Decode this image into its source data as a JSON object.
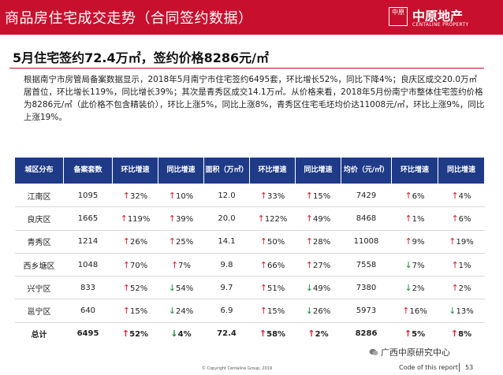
{
  "header": {
    "title": "商品房住宅成交走势（合同签约数据）",
    "logo": {
      "seal": "中原",
      "name": "中原地产",
      "en": "CENTALINE PROPERTY"
    }
  },
  "headline": "5月住宅签约72.4万㎡，签约价格8286元/㎡",
  "paragraph": "根据南宁市房管局备案数据显示，2018年5月南宁市住宅签约6495套，环比增长52%，同比下降4%；良庆区成交20.0万㎡居首位，环比增长119%，同比增长39%；其次是青秀区成交14.1万㎡。从价格来看，2018年5月份南宁市整体住宅签约价格为8286元/㎡（此价格不包含精装价），环比上涨5%，同比上涨8%，青秀区住宅毛坯均价达11008元/㎡，环比上涨9%，同比上涨19%。",
  "table": {
    "headers": [
      "城区分布",
      "备案套数",
      "环比增速",
      "同比增速",
      "面积（万㎡）",
      "环比增速",
      "同比增速",
      "均价（元/㎡）",
      "环比增速",
      "同比增速"
    ],
    "rows": [
      {
        "district": "江南区",
        "units": "1095",
        "u_mom": "32%",
        "u_mom_dir": "up",
        "u_yoy": "10%",
        "u_yoy_dir": "up",
        "area": "12.0",
        "a_mom": "33%",
        "a_mom_dir": "up",
        "a_yoy": "15%",
        "a_yoy_dir": "up",
        "price": "7429",
        "p_mom": "6%",
        "p_mom_dir": "up",
        "p_yoy": "4%",
        "p_yoy_dir": "up"
      },
      {
        "district": "良庆区",
        "units": "1665",
        "u_mom": "119%",
        "u_mom_dir": "up",
        "u_yoy": "39%",
        "u_yoy_dir": "up",
        "area": "20.0",
        "a_mom": "122%",
        "a_mom_dir": "up",
        "a_yoy": "49%",
        "a_yoy_dir": "up",
        "price": "8468",
        "p_mom": "1%",
        "p_mom_dir": "up",
        "p_yoy": "6%",
        "p_yoy_dir": "up"
      },
      {
        "district": "青秀区",
        "units": "1214",
        "u_mom": "26%",
        "u_mom_dir": "up",
        "u_yoy": "25%",
        "u_yoy_dir": "up",
        "area": "14.1",
        "a_mom": "50%",
        "a_mom_dir": "up",
        "a_yoy": "28%",
        "a_yoy_dir": "up",
        "price": "11008",
        "p_mom": "9%",
        "p_mom_dir": "up",
        "p_yoy": "19%",
        "p_yoy_dir": "up"
      },
      {
        "district": "西乡塘区",
        "units": "1048",
        "u_mom": "70%",
        "u_mom_dir": "up",
        "u_yoy": "7%",
        "u_yoy_dir": "up",
        "area": "9.8",
        "a_mom": "66%",
        "a_mom_dir": "up",
        "a_yoy": "27%",
        "a_yoy_dir": "up",
        "price": "7558",
        "p_mom": "7%",
        "p_mom_dir": "down",
        "p_yoy": "1%",
        "p_yoy_dir": "up"
      },
      {
        "district": "兴宁区",
        "units": "833",
        "u_mom": "52%",
        "u_mom_dir": "up",
        "u_yoy": "54%",
        "u_yoy_dir": "down",
        "area": "9.7",
        "a_mom": "51%",
        "a_mom_dir": "up",
        "a_yoy": "49%",
        "a_yoy_dir": "down",
        "price": "7380",
        "p_mom": "2%",
        "p_mom_dir": "down",
        "p_yoy": "2%",
        "p_yoy_dir": "up"
      },
      {
        "district": "邕宁区",
        "units": "640",
        "u_mom": "15%",
        "u_mom_dir": "up",
        "u_yoy": "24%",
        "u_yoy_dir": "down",
        "area": "6.9",
        "a_mom": "15%",
        "a_mom_dir": "up",
        "a_yoy": "26%",
        "a_yoy_dir": "down",
        "price": "5973",
        "p_mom": "16%",
        "p_mom_dir": "up",
        "p_yoy": "13%",
        "p_yoy_dir": "down"
      }
    ],
    "total": {
      "district": "总计",
      "units": "6495",
      "u_mom": "52%",
      "u_mom_dir": "up",
      "u_yoy": "4%",
      "u_yoy_dir": "down",
      "area": "72.4",
      "a_mom": "58%",
      "a_mom_dir": "up",
      "a_yoy": "2%",
      "a_yoy_dir": "up",
      "price": "8286",
      "p_mom": "5%",
      "p_mom_dir": "up",
      "p_yoy": "8%",
      "p_yoy_dir": "up"
    }
  },
  "footer": {
    "copyright": "© Copyright   Centaline Group, 2019",
    "wechat": "广西中原研究中心",
    "code_label": "Code of this report",
    "page": "53"
  },
  "colors": {
    "brand_red": "#c8102e",
    "table_header_blue": "#1f3b87",
    "up_arrow": "#d0202e",
    "down_arrow": "#1a8a3a"
  }
}
